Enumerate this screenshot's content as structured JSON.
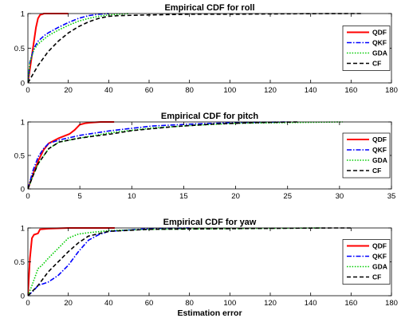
{
  "chart_data": [
    {
      "type": "line",
      "title": "Empirical CDF for roll",
      "xlabel": "",
      "ylabel": "",
      "xlim": [
        0,
        180
      ],
      "ylim": [
        0,
        1
      ],
      "xticks": [
        0,
        20,
        40,
        60,
        80,
        100,
        120,
        140,
        160,
        180
      ],
      "yticks": [
        0,
        0.5,
        1
      ],
      "grid": false,
      "legend_position": "right",
      "series": [
        {
          "name": "QDF",
          "color": "#ff0000",
          "dash": "solid",
          "x": [
            0,
            1,
            2,
            3,
            4,
            5,
            6,
            7,
            8,
            10,
            20
          ],
          "y": [
            0,
            0.2,
            0.4,
            0.6,
            0.8,
            0.93,
            0.98,
            0.99,
            1,
            1,
            1
          ]
        },
        {
          "name": "QKF",
          "color": "#0000ff",
          "dash": "dashdot",
          "x": [
            0,
            1,
            3,
            5,
            8,
            10,
            15,
            20,
            25,
            30,
            35,
            40
          ],
          "y": [
            0,
            0.3,
            0.5,
            0.6,
            0.68,
            0.72,
            0.8,
            0.87,
            0.93,
            0.97,
            0.99,
            1
          ]
        },
        {
          "name": "GDA",
          "color": "#00cc00",
          "dash": "dotted",
          "x": [
            0,
            1,
            3,
            5,
            10,
            15,
            20,
            25,
            30,
            35,
            40,
            45,
            50
          ],
          "y": [
            0,
            0.3,
            0.48,
            0.56,
            0.68,
            0.76,
            0.83,
            0.89,
            0.93,
            0.96,
            0.98,
            0.99,
            1
          ]
        },
        {
          "name": "CF",
          "color": "#000000",
          "dash": "dashed",
          "x": [
            0,
            2,
            5,
            10,
            15,
            20,
            25,
            30,
            35,
            40,
            45,
            60,
            80,
            100,
            120,
            140,
            160,
            165
          ],
          "y": [
            0,
            0.1,
            0.25,
            0.45,
            0.6,
            0.72,
            0.81,
            0.88,
            0.93,
            0.96,
            0.97,
            0.98,
            0.99,
            0.99,
            0.995,
            0.998,
            1,
            1
          ]
        }
      ]
    },
    {
      "type": "line",
      "title": "Empirical CDF for pitch",
      "xlabel": "",
      "ylabel": "",
      "xlim": [
        0,
        35
      ],
      "ylim": [
        0,
        1
      ],
      "xticks": [
        0,
        5,
        10,
        15,
        20,
        25,
        30,
        35
      ],
      "yticks": [
        0,
        0.5,
        1
      ],
      "grid": false,
      "legend_position": "right",
      "series": [
        {
          "name": "QDF",
          "color": "#ff0000",
          "dash": "solid",
          "x": [
            0,
            0.5,
            1,
            1.5,
            2,
            3,
            4,
            4.5,
            5,
            5.5,
            6,
            7,
            8.3
          ],
          "y": [
            0,
            0.22,
            0.42,
            0.58,
            0.68,
            0.76,
            0.82,
            0.88,
            0.96,
            0.98,
            0.99,
            1,
            1
          ]
        },
        {
          "name": "QKF",
          "color": "#0000ff",
          "dash": "dashdot",
          "x": [
            0,
            0.5,
            1,
            1.5,
            2,
            3,
            5,
            8,
            12,
            16,
            20,
            25
          ],
          "y": [
            0,
            0.28,
            0.48,
            0.6,
            0.68,
            0.73,
            0.8,
            0.87,
            0.94,
            0.97,
            0.99,
            1
          ]
        },
        {
          "name": "GDA",
          "color": "#00cc00",
          "dash": "dotted",
          "x": [
            0,
            0.5,
            1,
            2,
            3,
            5,
            8,
            12,
            16,
            20,
            25,
            30.3
          ],
          "y": [
            0,
            0.2,
            0.38,
            0.6,
            0.7,
            0.76,
            0.84,
            0.91,
            0.95,
            0.98,
            0.99,
            1
          ]
        },
        {
          "name": "CF",
          "color": "#000000",
          "dash": "dashed",
          "x": [
            0,
            0.5,
            1,
            2,
            3,
            5,
            8,
            10,
            14,
            18,
            22,
            26
          ],
          "y": [
            0,
            0.2,
            0.38,
            0.6,
            0.7,
            0.76,
            0.82,
            0.87,
            0.93,
            0.97,
            0.99,
            1
          ]
        }
      ]
    },
    {
      "type": "line",
      "title": "Empirical CDF for yaw",
      "xlabel": "Estimation error",
      "ylabel": "",
      "xlim": [
        0,
        180
      ],
      "ylim": [
        0,
        1
      ],
      "xticks": [
        0,
        20,
        40,
        60,
        80,
        100,
        120,
        140,
        160,
        180
      ],
      "yticks": [
        0,
        0.5,
        1
      ],
      "grid": false,
      "legend_position": "right",
      "series": [
        {
          "name": "QDF",
          "color": "#ff0000",
          "dash": "solid",
          "x": [
            0,
            1,
            2,
            3,
            5,
            6,
            10,
            20,
            43
          ],
          "y": [
            0,
            0.55,
            0.85,
            0.9,
            0.92,
            0.98,
            0.99,
            1,
            1
          ]
        },
        {
          "name": "QKF",
          "color": "#0000ff",
          "dash": "dashdot",
          "x": [
            0,
            3,
            5,
            10,
            15,
            20,
            25,
            30,
            35,
            40,
            50,
            60,
            80
          ],
          "y": [
            0,
            0.08,
            0.15,
            0.2,
            0.3,
            0.45,
            0.65,
            0.82,
            0.9,
            0.95,
            0.97,
            0.99,
            1
          ]
        },
        {
          "name": "GDA",
          "color": "#00cc00",
          "dash": "dotted",
          "x": [
            0,
            2,
            5,
            7,
            10,
            15,
            20,
            25,
            30,
            40,
            60,
            100,
            145
          ],
          "y": [
            0,
            0.15,
            0.4,
            0.45,
            0.55,
            0.7,
            0.85,
            0.91,
            0.93,
            0.96,
            0.98,
            0.99,
            1
          ]
        },
        {
          "name": "CF",
          "color": "#000000",
          "dash": "dashed",
          "x": [
            0,
            5,
            10,
            15,
            20,
            25,
            30,
            40,
            60,
            100,
            150,
            160
          ],
          "y": [
            0,
            0.15,
            0.35,
            0.5,
            0.65,
            0.78,
            0.88,
            0.95,
            0.98,
            0.99,
            1,
            1
          ]
        }
      ]
    }
  ]
}
